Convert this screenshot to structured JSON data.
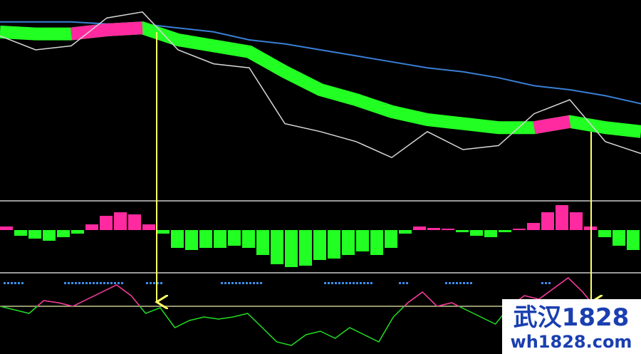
{
  "chart_data": [
    {
      "type": "line",
      "ylim": [
        0,
        100
      ],
      "series": [
        {
          "color": "#3a7fd5",
          "width": 2,
          "values": [
            89,
            89,
            89,
            88,
            88,
            86,
            84,
            80,
            78,
            75,
            72,
            69,
            66,
            64,
            61,
            57,
            55,
            52,
            48
          ]
        },
        {
          "color": "#22ff22",
          "width": 18,
          "values": [
            84,
            83,
            83,
            85,
            86,
            80,
            77,
            74,
            64,
            55,
            50,
            44,
            40,
            38,
            36,
            36,
            39,
            36,
            34
          ]
        },
        {
          "color": "#ff2aa0",
          "width": 18,
          "values": [
            null,
            null,
            83,
            85,
            86,
            null,
            null,
            null,
            null,
            null,
            null,
            null,
            null,
            null,
            null,
            36,
            39,
            null,
            null
          ]
        },
        {
          "color": "#d8d8d8",
          "width": 1.5,
          "values": [
            82,
            75,
            77,
            91,
            94,
            75,
            68,
            66,
            38,
            34,
            29,
            21,
            34,
            25,
            27,
            43,
            50,
            29,
            23
          ]
        }
      ]
    },
    {
      "type": "bar",
      "ylim": [
        -57,
        38
      ],
      "color": "#ff2aa0",
      "negative_color": "#22ff22",
      "values": [
        5,
        -8,
        -12,
        -15,
        -10,
        -5,
        8,
        20,
        25,
        22,
        8,
        -5,
        -25,
        -28,
        -25,
        -25,
        -22,
        -25,
        -35,
        -48,
        -52,
        -50,
        -42,
        -40,
        -35,
        -30,
        -35,
        -25,
        -5,
        5,
        3,
        2,
        -3,
        -8,
        -10,
        -3,
        2,
        10,
        25,
        35,
        25,
        5,
        -10,
        -22,
        -28
      ]
    },
    {
      "type": "line",
      "ylim": [
        -67,
        45
      ],
      "color": "#22dd22",
      "above_color": "#ff2aa0",
      "baseline_color": "#c8c890",
      "values": [
        0,
        -5,
        -10,
        8,
        5,
        0,
        10,
        20,
        30,
        15,
        -10,
        -2,
        -30,
        -20,
        -15,
        -18,
        -15,
        -10,
        -30,
        -50,
        -55,
        -40,
        -35,
        -45,
        -30,
        -40,
        -50,
        -15,
        5,
        20,
        0,
        5,
        -5,
        -15,
        -25,
        0,
        15,
        10,
        25,
        40,
        20,
        -5,
        -20,
        -30,
        -35
      ]
    }
  ],
  "watermark": {
    "title": "武汉1828",
    "url": "wh1828.com"
  }
}
